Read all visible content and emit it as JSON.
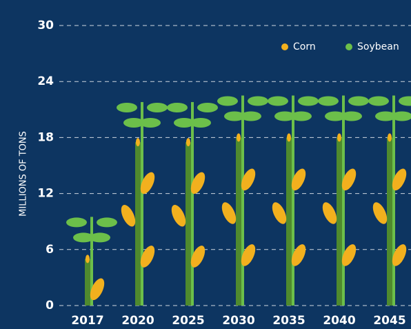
{
  "chart_data": {
    "type": "pictograph",
    "y_axis_label": "MILLIONS OF TONS",
    "categories": [
      "2017",
      "2020",
      "2025",
      "2030",
      "2035",
      "2040",
      "2045"
    ],
    "series": [
      {
        "name": "Corn",
        "color": "#f2b01e",
        "values": [
          5,
          17.5,
          17.5,
          18,
          18,
          18,
          18
        ]
      },
      {
        "name": "Soybean",
        "color": "#6cbf4a",
        "values": [
          9.5,
          21.8,
          21.8,
          22.5,
          22.5,
          22.5,
          22.5
        ]
      }
    ],
    "ylim": [
      0,
      30
    ],
    "yticks": [
      0,
      6,
      12,
      18,
      24,
      30
    ],
    "grid": true
  }
}
